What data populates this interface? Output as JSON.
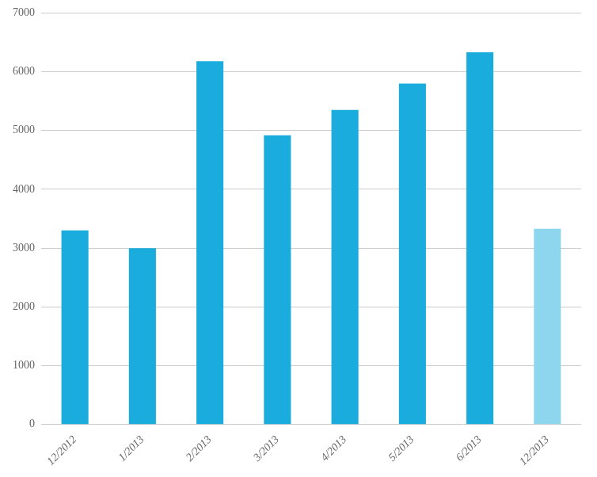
{
  "chart_data": {
    "type": "bar",
    "categories": [
      "12/2012",
      "1/2013",
      "2/2013",
      "3/2013",
      "4/2013",
      "5/2013",
      "6/2013",
      "12/2013"
    ],
    "values": [
      3300,
      3000,
      6180,
      4920,
      5350,
      5800,
      6330,
      3330
    ],
    "colors": [
      "#1aacdc",
      "#1aacdc",
      "#1aacdc",
      "#1aacdc",
      "#1aacdc",
      "#1aacdc",
      "#1aacdc",
      "#8dd6ed"
    ],
    "ylim": [
      0,
      7000
    ],
    "yticks": [
      0,
      1000,
      2000,
      3000,
      4000,
      5000,
      6000,
      7000
    ],
    "grid": true
  }
}
